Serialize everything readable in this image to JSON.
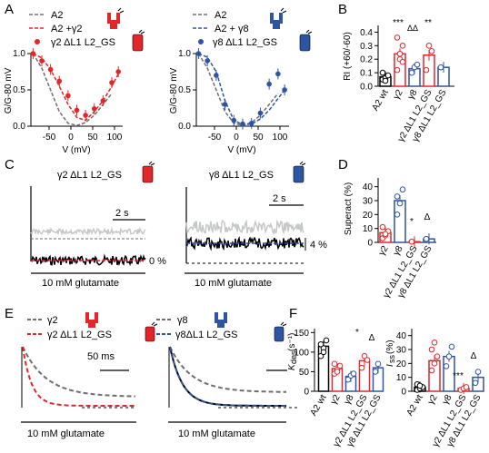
{
  "panels": {
    "A": {
      "letter": "A",
      "left": {
        "legend": [
          "A2",
          "A2 +γ2",
          "γ2 ΔL1 L2_GS"
        ],
        "ylabel": "G/G-80 mV",
        "xlabel": "V (mV)",
        "yticks": [
          "0.0",
          "0.5",
          "1.0"
        ],
        "xticks": [
          "-50",
          "0",
          "50",
          "100"
        ]
      },
      "right": {
        "legend": [
          "A2",
          "A2 + γ8",
          "γ8 ΔL1 L2_GS"
        ],
        "ylabel": "G/G-80 mV",
        "xlabel": "V (mV)",
        "yticks": [
          "0.0",
          "0.5",
          "1.0"
        ],
        "xticks": [
          "-50",
          "0",
          "50",
          "100"
        ]
      }
    },
    "B": {
      "letter": "B",
      "ylabel": "RI (+60/-60)",
      "yticks": [
        "0.0",
        "0.1",
        "0.2",
        "0.3",
        "0.4"
      ],
      "categories": [
        "A2 wt",
        "γ2",
        "γ8",
        "γ2 ΔL1 L2_GS",
        "γ8 ΔL1 L2_GS"
      ],
      "sig": [
        "***",
        "ΔΔ",
        "**"
      ]
    },
    "C": {
      "letter": "C",
      "left_title": "γ2 ΔL1 L2_GS",
      "right_title": "γ8 ΔL1 L2_GS",
      "scale": "2 s",
      "scale2": "2 s",
      "zero": "0 %",
      "pct": "4 %",
      "glut_left": "10 mM glutamate",
      "glut_right": "10 mM glutamate"
    },
    "D": {
      "letter": "D",
      "ylabel": "Superact (%)",
      "yticks": [
        "0",
        "10",
        "20",
        "30",
        "40"
      ],
      "categories": [
        "γ2",
        "γ8",
        "γ2 ΔL1 L2_GS",
        "γ8 ΔL1 L2_GS"
      ],
      "sig": [
        "*",
        "Δ"
      ]
    },
    "E": {
      "letter": "E",
      "left_legend": [
        "γ2",
        "γ2 ΔL1 L2_GS"
      ],
      "right_legend": [
        "γ8",
        "γ8ΔL1 L2_GS"
      ],
      "scale": "50 ms",
      "glut_left": "10 mM glutamate",
      "glut_right": "10 mM glutamate"
    },
    "F": {
      "letter": "F",
      "left_yticks": [
        "0",
        "50",
        "100",
        "150"
      ],
      "left_ylabel": "(s⁻¹)",
      "left_ylabel_k": "K",
      "left_ylabel_sub": "des",
      "right_yticks": [
        "0",
        "10",
        "20",
        "30",
        "40"
      ],
      "right_ylabel": "(%)",
      "right_ylabel_i": "I",
      "right_ylabel_sub": "ss",
      "categories": [
        "A2 wt",
        "γ2",
        "γ8",
        "γ2 ΔL1 L2_GS",
        "γ8 ΔL1 L2_GS"
      ],
      "left_sig": [
        "*",
        "Δ"
      ],
      "right_sig": [
        "***",
        "Δ"
      ]
    }
  },
  "colors": {
    "red": "#e3262a",
    "blue": "#2e54a4",
    "grey": "#6d6e70",
    "lightgrey": "#c6c7c9"
  },
  "chart_data": [
    {
      "type": "line",
      "panel": "A-left",
      "xlabel": "V (mV)",
      "ylabel": "G/G-80 mV",
      "xlim": [
        -85,
        125
      ],
      "ylim": [
        0,
        1.1
      ],
      "series": [
        {
          "name": "A2",
          "style": "dashed-grey",
          "x": [
            -80,
            -60,
            -40,
            -20,
            0,
            20,
            40,
            60,
            80,
            100
          ],
          "y": [
            1.0,
            0.8,
            0.5,
            0.2,
            0.04,
            0.01,
            0.05,
            0.15,
            0.3,
            0.45
          ]
        },
        {
          "name": "A2 +γ2",
          "style": "dashed-red",
          "x": [
            -80,
            -60,
            -40,
            -20,
            0,
            20,
            40,
            60,
            80,
            100,
            115
          ],
          "y": [
            1.0,
            0.94,
            0.78,
            0.55,
            0.3,
            0.12,
            0.08,
            0.2,
            0.35,
            0.55,
            0.72
          ]
        },
        {
          "name": "γ2 ΔL1 L2_GS",
          "style": "points-red",
          "x": [
            -80,
            -60,
            -40,
            -20,
            0,
            20,
            40,
            60,
            80,
            100,
            115
          ],
          "y": [
            1.0,
            0.9,
            0.78,
            0.62,
            0.42,
            0.22,
            0.15,
            0.24,
            0.35,
            0.6,
            0.75
          ]
        }
      ]
    },
    {
      "type": "line",
      "panel": "A-right",
      "xlabel": "V (mV)",
      "ylabel": "G/G-80 mV",
      "xlim": [
        -85,
        125
      ],
      "ylim": [
        0,
        1.1
      ],
      "series": [
        {
          "name": "A2",
          "style": "dashed-grey",
          "x": [
            -80,
            -60,
            -40,
            -20,
            0,
            20,
            40,
            60,
            80,
            100
          ],
          "y": [
            1.0,
            0.8,
            0.5,
            0.2,
            0.04,
            0.01,
            0.05,
            0.15,
            0.3,
            0.45
          ]
        },
        {
          "name": "A2 + γ8",
          "style": "dashed-blue",
          "x": [
            -80,
            -60,
            -40,
            -20,
            0,
            20,
            40,
            60,
            80,
            100,
            115
          ],
          "y": [
            1.0,
            0.95,
            0.75,
            0.35,
            0.08,
            0.02,
            0.03,
            0.1,
            0.22,
            0.38,
            0.5
          ]
        },
        {
          "name": "γ8 ΔL1 L2_GS",
          "style": "points-blue",
          "x": [
            -80,
            -60,
            -40,
            -20,
            0,
            20,
            40,
            60,
            80,
            100,
            115
          ],
          "y": [
            1.0,
            0.9,
            0.7,
            0.3,
            0.08,
            0.03,
            0.04,
            0.18,
            0.58,
            0.72,
            0.5
          ]
        }
      ]
    },
    {
      "type": "bar",
      "panel": "B",
      "ylabel": "RI (+60/-60)",
      "ylim": [
        0,
        0.45
      ],
      "categories": [
        "A2 wt",
        "γ2",
        "γ8",
        "γ2 ΔL1 L2_GS",
        "γ8 ΔL1 L2_GS"
      ],
      "values": [
        0.07,
        0.24,
        0.13,
        0.23,
        0.14
      ]
    },
    {
      "type": "bar",
      "panel": "D",
      "ylabel": "Superact (%)",
      "ylim": [
        0,
        45
      ],
      "categories": [
        "γ2",
        "γ8",
        "γ2 ΔL1 L2_GS",
        "γ8 ΔL1 L2_GS"
      ],
      "values": [
        7,
        30,
        0.5,
        2.5
      ]
    },
    {
      "type": "bar",
      "panel": "F-left",
      "ylim": [
        0,
        160
      ],
      "categories": [
        "A2 wt",
        "γ2",
        "γ8",
        "γ2 ΔL1 L2_GS",
        "γ8 ΔL1 L2_GS"
      ],
      "values": [
        115,
        58,
        38,
        78,
        60
      ]
    },
    {
      "type": "bar",
      "panel": "F-right",
      "ylim": [
        0,
        45
      ],
      "categories": [
        "A2 wt",
        "γ2",
        "γ8",
        "γ2 ΔL1 L2_GS",
        "γ8 ΔL1 L2_GS"
      ],
      "values": [
        3,
        22,
        25,
        2,
        10
      ]
    }
  ]
}
